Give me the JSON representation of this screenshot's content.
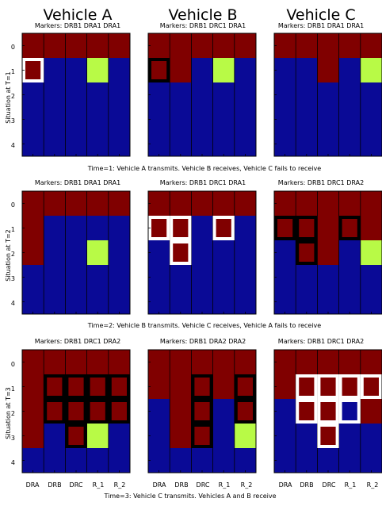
{
  "colors": {
    "background_cell": "#0a0a96",
    "occupied_cell": "#800000",
    "target_cell": "#b8fa46",
    "outline_black": "#000000",
    "outline_white": "#ffffff"
  },
  "columns": [
    {
      "title": "Vehicle A"
    },
    {
      "title": "Vehicle B"
    },
    {
      "title": "Vehicle C"
    }
  ],
  "x_ticks": [
    "DRA",
    "DRB",
    "DRC",
    "R_1",
    "R_2"
  ],
  "y_ticks": [
    "0",
    "1",
    "2",
    "3",
    "4"
  ],
  "rows": [
    {
      "ylabel": "Situation at T=1",
      "caption": "Time=1: Vehicle A transmits. Vehicle B receives, Vehicle C fails to receive",
      "panels": [
        {
          "markers": "Markers: DRB1 DRA1 DRA1",
          "heights": [
            2,
            1,
            1,
            1,
            1
          ],
          "target": [
            3,
            1
          ],
          "outline_color": "white",
          "outlines": [
            [
              0,
              1
            ]
          ]
        },
        {
          "markers": "Markers: DRB1 DRC1 DRA1",
          "heights": [
            2,
            2,
            1,
            1,
            1
          ],
          "target": [
            3,
            1
          ],
          "outline_color": "black",
          "outlines": [
            [
              0,
              1
            ]
          ]
        },
        {
          "markers": "Markers: DRB1 DRA1 DRA1",
          "heights": [
            1,
            1,
            2,
            1,
            1
          ],
          "target": [
            4,
            1
          ],
          "outline_color": "black",
          "outlines": []
        }
      ]
    },
    {
      "ylabel": "Situation at T=2",
      "caption": "Time=2: Vehicle B transmits. Vehicle C receives, Vehicle A fails to receive",
      "panels": [
        {
          "markers": "Markers: DRB1 DRA1 DRA1",
          "heights": [
            3,
            1,
            1,
            1,
            1
          ],
          "target": [
            3,
            2
          ],
          "outline_color": "white",
          "outlines": []
        },
        {
          "markers": "Markers: DRB1 DRC1 DRA1",
          "heights": [
            2,
            3,
            1,
            2,
            1
          ],
          "target": null,
          "outline_color": "white",
          "outlines": [
            [
              0,
              1
            ],
            [
              1,
              1
            ],
            [
              1,
              2
            ],
            [
              3,
              1
            ]
          ]
        },
        {
          "markers": "Markers: DRB1 DRC1 DRA2",
          "heights": [
            2,
            3,
            3,
            2,
            2
          ],
          "target": [
            4,
            2
          ],
          "outline_color": "black",
          "outlines": [
            [
              0,
              1
            ],
            [
              1,
              1
            ],
            [
              1,
              2
            ],
            [
              3,
              1
            ]
          ]
        }
      ]
    },
    {
      "ylabel": "Situation at T=3",
      "caption": "Time=3: Vehicle C transmits. Vehicles A and B receive",
      "panels": [
        {
          "markers": "Markers: DRB1 DRC1 DRA2",
          "heights": [
            4,
            3,
            4,
            3,
            3
          ],
          "target": [
            3,
            3
          ],
          "outline_color": "black",
          "outlines": [
            [
              1,
              1
            ],
            [
              2,
              1
            ],
            [
              3,
              1
            ],
            [
              4,
              1
            ],
            [
              1,
              2
            ],
            [
              2,
              2
            ],
            [
              3,
              2
            ],
            [
              4,
              2
            ],
            [
              2,
              3
            ]
          ]
        },
        {
          "markers": "Markers: DRB1 DRA2 DRA2",
          "heights": [
            2,
            4,
            4,
            2,
            3
          ],
          "target": [
            4,
            3
          ],
          "outline_color": "black",
          "outlines": [
            [
              2,
              1
            ],
            [
              2,
              2
            ],
            [
              2,
              3
            ],
            [
              4,
              1
            ],
            [
              4,
              2
            ]
          ]
        },
        {
          "markers": "Markers: DRB1 DRC1 DRA2",
          "heights": [
            2,
            3,
            4,
            2,
            3
          ],
          "target": null,
          "outline_color": "white",
          "outlines": [
            [
              1,
              1
            ],
            [
              2,
              1
            ],
            [
              3,
              1
            ],
            [
              4,
              1
            ],
            [
              1,
              2
            ],
            [
              2,
              2
            ],
            [
              3,
              2
            ],
            [
              2,
              3
            ]
          ]
        }
      ]
    }
  ]
}
